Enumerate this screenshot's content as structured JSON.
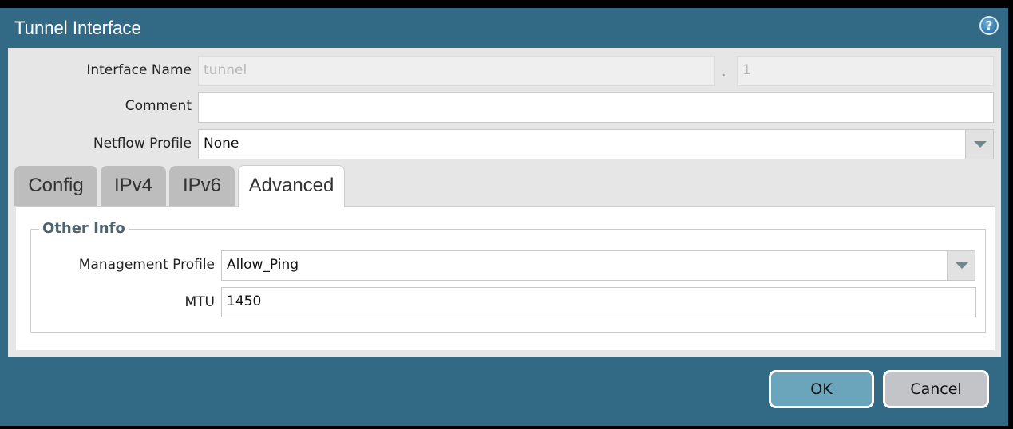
{
  "dialog": {
    "title": "Tunnel Interface",
    "help_icon": "help-circle-icon"
  },
  "form": {
    "interface_name": {
      "label": "Interface Name",
      "value": "tunnel",
      "separator": ".",
      "suffix": "1"
    },
    "comment": {
      "label": "Comment",
      "value": ""
    },
    "netflow_profile": {
      "label": "Netflow Profile",
      "value": "None"
    }
  },
  "tabs": [
    {
      "label": "Config"
    },
    {
      "label": "IPv4"
    },
    {
      "label": "IPv6"
    },
    {
      "label": "Advanced",
      "active": true
    }
  ],
  "advanced": {
    "section_title": "Other Info",
    "management_profile": {
      "label": "Management Profile",
      "value": "Allow_Ping"
    },
    "mtu": {
      "label": "MTU",
      "value": "1450"
    }
  },
  "buttons": {
    "ok": "OK",
    "cancel": "Cancel"
  },
  "colors": {
    "titlebar": "#326a86",
    "ok_button": "#6aa5bb",
    "cancel_button": "#c2c4c8"
  }
}
